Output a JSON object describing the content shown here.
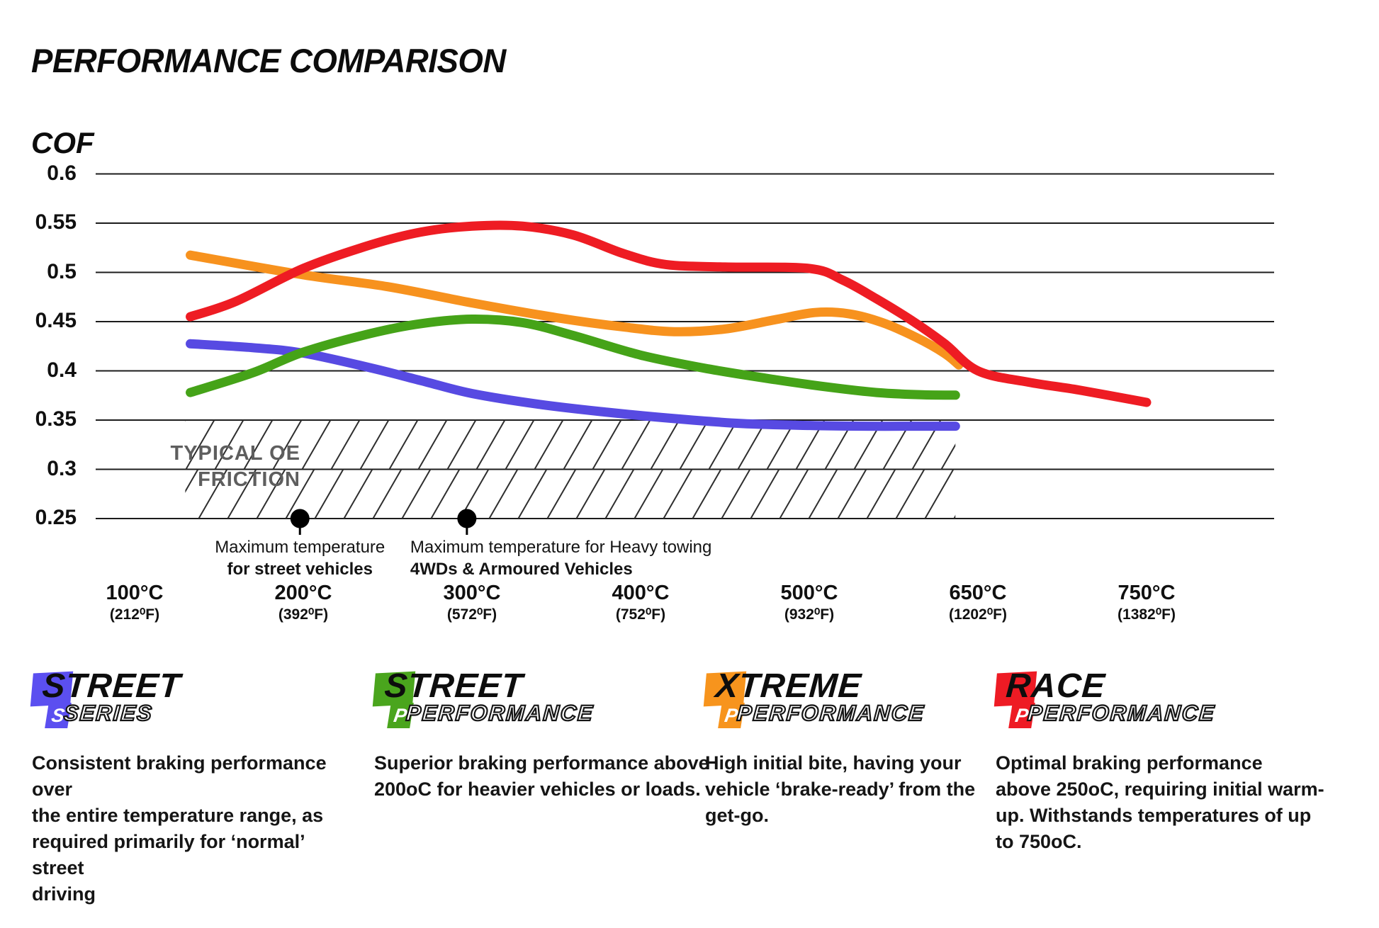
{
  "page": {
    "title": "PERFORMANCE COMPARISON",
    "y_axis_label": "COF"
  },
  "chart_data": {
    "type": "line",
    "title": "PERFORMANCE COMPARISON",
    "ylabel": "COF",
    "grid": "horizontal",
    "ylim": [
      0.25,
      0.62
    ],
    "y_ticks": [
      {
        "v": 0.6,
        "label": "0.6"
      },
      {
        "v": 0.55,
        "label": "0.55"
      },
      {
        "v": 0.5,
        "label": "0.5"
      },
      {
        "v": 0.45,
        "label": "0.45"
      },
      {
        "v": 0.4,
        "label": "0.4"
      },
      {
        "v": 0.35,
        "label": "0.35"
      },
      {
        "v": 0.3,
        "label": "0.3"
      },
      {
        "v": 0.25,
        "label": "0.25"
      }
    ],
    "x_ticks": [
      {
        "t": 100,
        "c": "100°C",
        "f": "(212⁰F)"
      },
      {
        "t": 200,
        "c": "200°C",
        "f": "(392⁰F)"
      },
      {
        "t": 300,
        "c": "300°C",
        "f": "(572⁰F)"
      },
      {
        "t": 400,
        "c": "400°C",
        "f": "(752⁰F)"
      },
      {
        "t": 500,
        "c": "500°C",
        "f": "(932⁰F)"
      },
      {
        "t": 650,
        "c": "650°C",
        "f": "(1202⁰F)"
      },
      {
        "t": 750,
        "c": "750°C",
        "f": "(1382⁰F)"
      }
    ],
    "series": [
      {
        "name": "Street Series",
        "color": "#574ae2",
        "points": [
          [
            133,
            0.4275
          ],
          [
            170,
            0.4235
          ],
          [
            200,
            0.418
          ],
          [
            240,
            0.403
          ],
          [
            270,
            0.39
          ],
          [
            300,
            0.377
          ],
          [
            340,
            0.366
          ],
          [
            380,
            0.358
          ],
          [
            420,
            0.3515
          ],
          [
            460,
            0.3465
          ],
          [
            500,
            0.3445
          ],
          [
            550,
            0.3438
          ],
          [
            600,
            0.3438
          ],
          [
            630,
            0.3438
          ]
        ]
      },
      {
        "name": "Street Performance",
        "color": "#45a318",
        "points": [
          [
            133,
            0.378
          ],
          [
            170,
            0.398
          ],
          [
            200,
            0.419
          ],
          [
            240,
            0.438
          ],
          [
            270,
            0.448
          ],
          [
            300,
            0.4525
          ],
          [
            330,
            0.449
          ],
          [
            360,
            0.436
          ],
          [
            400,
            0.416
          ],
          [
            440,
            0.402
          ],
          [
            480,
            0.391
          ],
          [
            520,
            0.383
          ],
          [
            560,
            0.378
          ],
          [
            600,
            0.3757
          ],
          [
            630,
            0.3753
          ]
        ]
      },
      {
        "name": "Xtreme Performance",
        "color": "#f7921e",
        "points": [
          [
            133,
            0.5175
          ],
          [
            200,
            0.4975
          ],
          [
            250,
            0.4855
          ],
          [
            300,
            0.469
          ],
          [
            350,
            0.454
          ],
          [
            390,
            0.4445
          ],
          [
            420,
            0.4398
          ],
          [
            450,
            0.4425
          ],
          [
            480,
            0.452
          ],
          [
            505,
            0.4592
          ],
          [
            535,
            0.458
          ],
          [
            565,
            0.449
          ],
          [
            595,
            0.434
          ],
          [
            620,
            0.418
          ],
          [
            633,
            0.406
          ]
        ]
      },
      {
        "name": "Race Performance",
        "color": "#ee1c23",
        "points": [
          [
            133,
            0.455
          ],
          [
            160,
            0.4705
          ],
          [
            200,
            0.504
          ],
          [
            240,
            0.528
          ],
          [
            270,
            0.541
          ],
          [
            300,
            0.547
          ],
          [
            330,
            0.547
          ],
          [
            360,
            0.538
          ],
          [
            390,
            0.519
          ],
          [
            415,
            0.508
          ],
          [
            450,
            0.5055
          ],
          [
            500,
            0.504
          ],
          [
            530,
            0.492
          ],
          [
            560,
            0.473
          ],
          [
            590,
            0.452
          ],
          [
            620,
            0.428
          ],
          [
            650,
            0.4
          ],
          [
            680,
            0.3885
          ],
          [
            710,
            0.3805
          ],
          [
            750,
            0.368
          ]
        ]
      }
    ],
    "oe_band": {
      "label": "TYPICAL OE\nFRICTION",
      "cof_top": 0.35,
      "cof_bottom": 0.25,
      "temp_start": 130,
      "temp_end": 630
    },
    "annotations": [
      {
        "temp": 198,
        "cof": 0.25,
        "align": "center",
        "line1": "Maximum temperature",
        "line2": "for street vehicles"
      },
      {
        "temp": 297,
        "cof": 0.25,
        "align": "left",
        "line1": "Maximum temperature for Heavy towing",
        "line2": "4WDs & Armoured Vehicles"
      }
    ]
  },
  "legend": [
    {
      "word1": "STREET",
      "word2": "SERIES",
      "badge_letter": "S",
      "color": "#5b4ff0",
      "description": "Consistent braking performance over\nthe entire temperature range, as\nrequired primarily for ‘normal’ street\ndriving"
    },
    {
      "word1": "STREET",
      "word2": "PERFORMANCE",
      "badge_letter": "P",
      "color": "#4aa51d",
      "description": "Superior braking performance above\n200oC for heavier vehicles or loads."
    },
    {
      "word1": "XTREME",
      "word2": "PERFORMANCE",
      "badge_letter": "P",
      "color": "#f7941d",
      "description": "High initial bite, having your\nvehicle ‘brake-ready’ from the\nget-go."
    },
    {
      "word1": "RACE",
      "word2": "PERFORMANCE",
      "badge_letter": "P",
      "color": "#ee1b24",
      "description": "Optimal braking performance\nabove 250oC, requiring initial warm-\nup. Withstands temperatures of up\nto 750oC."
    }
  ]
}
